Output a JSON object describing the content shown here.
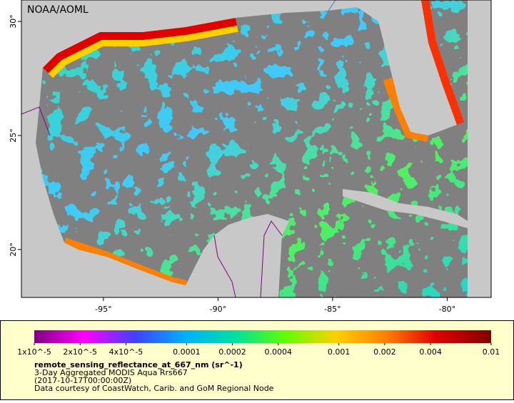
{
  "header": "NOAA/AOML",
  "map": {
    "lonlim": [
      -98.58,
      -78.08
    ],
    "latlim": [
      17.9,
      30.94
    ],
    "lon_ticks": [
      {
        "value": -95,
        "label": "-95°"
      },
      {
        "value": -90,
        "label": "-90°"
      },
      {
        "value": -85,
        "label": "-85°"
      },
      {
        "value": -80,
        "label": "-80°"
      }
    ],
    "lat_ticks": [
      {
        "value": 20,
        "label": "20°"
      },
      {
        "value": 25,
        "label": "25°"
      },
      {
        "value": 30,
        "label": "30°"
      }
    ]
  },
  "colorbar": {
    "scale": "log",
    "lim": [
      1e-05,
      0.01
    ],
    "ticks": [
      {
        "value": 1e-05,
        "label": "1x10^-5"
      },
      {
        "value": 2e-05,
        "label": "2x10^-5"
      },
      {
        "value": 4e-05,
        "label": "4x10^-5"
      },
      0.0001,
      0.0002,
      0.0004,
      0.001,
      0.002,
      0.004,
      0.01
    ]
  },
  "legend": {
    "variable": "remote_sensing_reflectance_at_667_nm (sr^-1)",
    "product": "3-Day Aggregated MODIS Aqua Rrs667",
    "time": "(2017-10-17T00:00:00Z)",
    "credit": "Data courtesy of CoastWatch, Carib. and GoM Regional Node"
  }
}
